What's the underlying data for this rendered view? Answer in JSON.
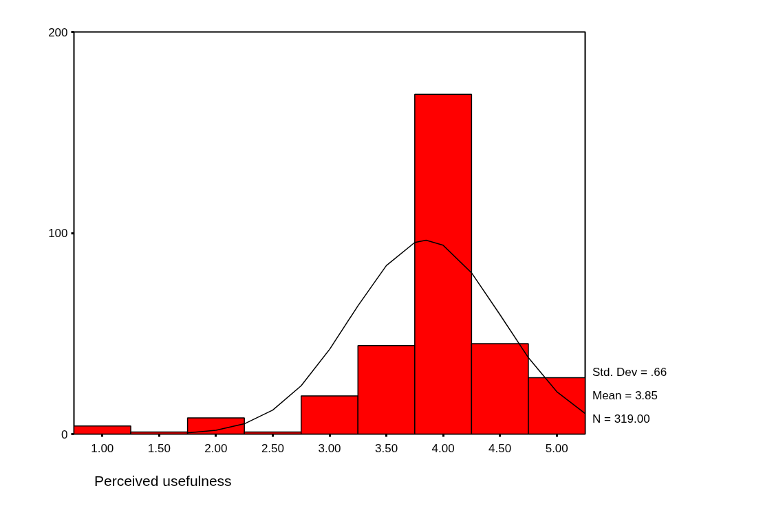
{
  "chart_data": {
    "type": "histogram",
    "xlabel": "Perceived usefulness",
    "bins": [
      0.75,
      1.25,
      1.75,
      2.25,
      2.75,
      3.25,
      3.75,
      4.25,
      4.75,
      5.25
    ],
    "values": [
      4,
      1,
      8,
      1,
      19,
      44,
      169,
      45,
      28
    ],
    "color": "#ff0000",
    "series": [
      {
        "type": "line",
        "color": "#000000",
        "x": [
          1.75,
          2.0,
          2.25,
          2.5,
          2.75,
          3.0,
          3.25,
          3.5,
          3.75,
          3.85,
          4.0,
          4.25,
          4.5,
          4.75,
          5.0,
          5.25
        ],
        "values": [
          0.6,
          1.9,
          5.1,
          11.9,
          24.0,
          42.1,
          63.8,
          83.8,
          95.3,
          96.4,
          93.9,
          80.2,
          59.4,
          38.0,
          21.1,
          10.2
        ]
      }
    ],
    "xlim": [
      0.75,
      5.25
    ],
    "xticks": [
      {
        "value": 1,
        "label": "1.00"
      },
      {
        "value": 1.5,
        "label": "1.50"
      },
      {
        "value": 2,
        "label": "2.00"
      },
      {
        "value": 2.5,
        "label": "2.50"
      },
      {
        "value": 3,
        "label": "3.00"
      },
      {
        "value": 3.5,
        "label": "3.50"
      },
      {
        "value": 4,
        "label": "4.00"
      },
      {
        "value": 4.5,
        "label": "4.50"
      },
      {
        "value": 5,
        "label": "5.00"
      }
    ],
    "ylim": [
      0,
      200
    ],
    "yticks": [
      0,
      100,
      200
    ],
    "annotations": [
      "Std. Dev = .66",
      "Mean = 3.85",
      "N = 319.00"
    ],
    "grid": false
  }
}
